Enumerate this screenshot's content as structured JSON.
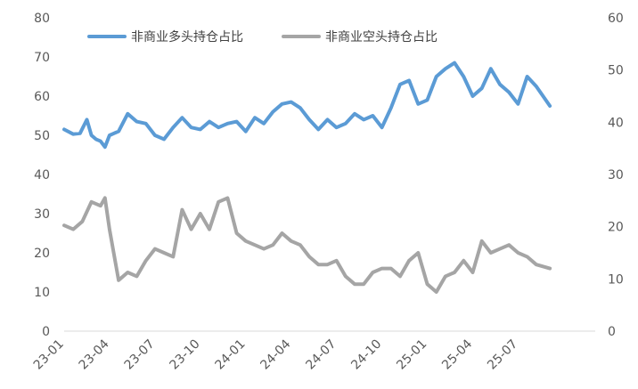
{
  "chart_data": {
    "type": "line",
    "title": "",
    "x_tick_labels": [
      "23-01",
      "23-04",
      "23-07",
      "23-10",
      "24-01",
      "24-04",
      "24-07",
      "24-10",
      "25-01",
      "25-04",
      "25-07"
    ],
    "y_left": {
      "ylim": [
        0,
        80
      ],
      "ticks": [
        0,
        10,
        20,
        30,
        40,
        50,
        60,
        70,
        80
      ]
    },
    "y_right": {
      "ylim": [
        0,
        60
      ],
      "ticks": [
        0,
        10,
        20,
        30,
        40,
        50,
        60
      ]
    },
    "grid": false,
    "legend": "top-left",
    "series": [
      {
        "name": "非商业多头持仓占比",
        "axis": "left",
        "color": "#5b9bd5",
        "x": [
          0,
          0.2,
          0.35,
          0.5,
          0.6,
          0.7,
          0.8,
          0.9,
          1.0,
          1.2,
          1.4,
          1.6,
          1.8,
          2.0,
          2.2,
          2.4,
          2.6,
          2.8,
          3.0,
          3.2,
          3.4,
          3.6,
          3.8,
          4.0,
          4.2,
          4.4,
          4.6,
          4.8,
          5.0,
          5.2,
          5.4,
          5.6,
          5.8,
          6.0,
          6.2,
          6.4,
          6.6,
          6.8,
          7.0,
          7.2,
          7.4,
          7.6,
          7.8,
          8.0,
          8.2,
          8.4,
          8.6,
          8.8,
          9.0,
          9.2,
          9.4,
          9.6,
          9.8,
          10.0,
          10.2,
          10.4,
          10.7
        ],
        "values": [
          51.5,
          50.3,
          50.5,
          54,
          50,
          49,
          48.5,
          47,
          50,
          51,
          55.5,
          53.5,
          53,
          50,
          49,
          52,
          54.5,
          52,
          51.5,
          53.5,
          52,
          53,
          53.5,
          51,
          54.5,
          53,
          56,
          58,
          58.5,
          57,
          54,
          51.5,
          54,
          52,
          53,
          55.5,
          54,
          55,
          52,
          57,
          63,
          64,
          58,
          59,
          65,
          67,
          68.5,
          65,
          60,
          62,
          67,
          63,
          61,
          58,
          65,
          62.5,
          57.5
        ]
      },
      {
        "name": "非商业空头持仓占比",
        "axis": "left",
        "color": "#a5a5a5",
        "x": [
          0,
          0.2,
          0.4,
          0.6,
          0.8,
          0.9,
          1.0,
          1.2,
          1.4,
          1.6,
          1.8,
          2.0,
          2.2,
          2.4,
          2.6,
          2.8,
          3.0,
          3.2,
          3.4,
          3.6,
          3.8,
          4.0,
          4.2,
          4.4,
          4.6,
          4.8,
          5.0,
          5.2,
          5.4,
          5.6,
          5.8,
          6.0,
          6.2,
          6.4,
          6.6,
          6.8,
          7.0,
          7.2,
          7.4,
          7.6,
          7.8,
          8.0,
          8.2,
          8.4,
          8.6,
          8.8,
          9.0,
          9.2,
          9.4,
          9.6,
          9.8,
          10.0,
          10.2,
          10.4,
          10.7
        ],
        "values": [
          27,
          26,
          28,
          33,
          32,
          34,
          26,
          13,
          15,
          14,
          18,
          21,
          20,
          19,
          31,
          26,
          30,
          26,
          33,
          34,
          25,
          23,
          22,
          21,
          22,
          25,
          23,
          22,
          19,
          17,
          17,
          18,
          14,
          12,
          12,
          15,
          16,
          16,
          14,
          18,
          20,
          12,
          10,
          14,
          15,
          18,
          15,
          23,
          20,
          21,
          22,
          20,
          19,
          17,
          16
        ]
      }
    ]
  }
}
